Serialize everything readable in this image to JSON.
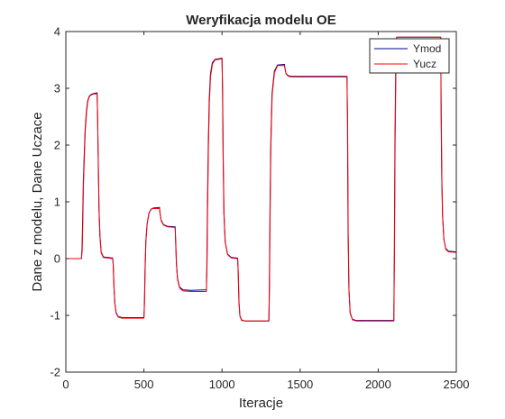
{
  "chart_data": {
    "type": "line",
    "title": "Weryfikacja modelu OE",
    "xlabel": "Iteracje",
    "ylabel": "Dane z modelu, Dane Uczace",
    "xlim": [
      0,
      2500
    ],
    "ylim": [
      -2,
      4
    ],
    "xticks": [
      "0",
      "500",
      "1000",
      "1500",
      "2000",
      "2500"
    ],
    "yticks": [
      "-2",
      "-1",
      "0",
      "1",
      "2",
      "3",
      "4"
    ],
    "grid": false,
    "legend": "top-right",
    "series": [
      {
        "name": "Ymod",
        "color": "#00008b",
        "points": [
          [
            0,
            0
          ],
          [
            100,
            0
          ],
          [
            104,
            0.2
          ],
          [
            108,
            0.75
          ],
          [
            112,
            1.35
          ],
          [
            118,
            1.85
          ],
          [
            124,
            2.3
          ],
          [
            132,
            2.6
          ],
          [
            140,
            2.78
          ],
          [
            150,
            2.86
          ],
          [
            160,
            2.89
          ],
          [
            180,
            2.91
          ],
          [
            200,
            2.92
          ],
          [
            203,
            2.6
          ],
          [
            207,
            1.8
          ],
          [
            212,
            0.9
          ],
          [
            218,
            0.4
          ],
          [
            226,
            0.12
          ],
          [
            240,
            0.03
          ],
          [
            300,
            0.01
          ],
          [
            303,
            -0.1
          ],
          [
            308,
            -0.5
          ],
          [
            314,
            -0.8
          ],
          [
            322,
            -0.95
          ],
          [
            335,
            -1.02
          ],
          [
            360,
            -1.04
          ],
          [
            500,
            -1.04
          ],
          [
            503,
            -0.8
          ],
          [
            507,
            -0.2
          ],
          [
            512,
            0.3
          ],
          [
            520,
            0.6
          ],
          [
            532,
            0.8
          ],
          [
            545,
            0.87
          ],
          [
            560,
            0.89
          ],
          [
            600,
            0.9
          ],
          [
            603,
            0.8
          ],
          [
            610,
            0.68
          ],
          [
            625,
            0.6
          ],
          [
            650,
            0.57
          ],
          [
            700,
            0.56
          ],
          [
            703,
            0.3
          ],
          [
            708,
            -0.1
          ],
          [
            715,
            -0.35
          ],
          [
            728,
            -0.5
          ],
          [
            750,
            -0.55
          ],
          [
            800,
            -0.56
          ],
          [
            900,
            -0.55
          ],
          [
            903,
            -0.1
          ],
          [
            907,
            1.0
          ],
          [
            912,
            2.0
          ],
          [
            918,
            2.8
          ],
          [
            926,
            3.25
          ],
          [
            938,
            3.45
          ],
          [
            955,
            3.51
          ],
          [
            1000,
            3.53
          ],
          [
            1003,
            3.0
          ],
          [
            1007,
            1.8
          ],
          [
            1012,
            0.8
          ],
          [
            1020,
            0.3
          ],
          [
            1035,
            0.08
          ],
          [
            1060,
            0.02
          ],
          [
            1100,
            0.01
          ],
          [
            1103,
            -0.2
          ],
          [
            1108,
            -0.75
          ],
          [
            1114,
            -1.0
          ],
          [
            1125,
            -1.08
          ],
          [
            1150,
            -1.1
          ],
          [
            1300,
            -1.1
          ],
          [
            1303,
            -0.5
          ],
          [
            1307,
            0.8
          ],
          [
            1312,
            2.0
          ],
          [
            1320,
            2.9
          ],
          [
            1335,
            3.3
          ],
          [
            1355,
            3.41
          ],
          [
            1400,
            3.42
          ],
          [
            1403,
            3.35
          ],
          [
            1410,
            3.26
          ],
          [
            1425,
            3.22
          ],
          [
            1450,
            3.21
          ],
          [
            1800,
            3.21
          ],
          [
            1803,
            2.5
          ],
          [
            1807,
            0.5
          ],
          [
            1812,
            -0.5
          ],
          [
            1820,
            -0.95
          ],
          [
            1835,
            -1.07
          ],
          [
            1860,
            -1.09
          ],
          [
            2100,
            -1.09
          ],
          [
            2103,
            0.0
          ],
          [
            2107,
            2.0
          ],
          [
            2112,
            3.3
          ],
          [
            2118,
            3.9
          ],
          [
            2400,
            3.9
          ],
          [
            2403,
            2.5
          ],
          [
            2407,
            1.4
          ],
          [
            2412,
            0.75
          ],
          [
            2420,
            0.35
          ],
          [
            2432,
            0.18
          ],
          [
            2450,
            0.13
          ],
          [
            2500,
            0.12
          ]
        ]
      },
      {
        "name": "Yucz",
        "color": "#ff0000",
        "points": [
          [
            0,
            0
          ],
          [
            100,
            0
          ],
          [
            105,
            0.15
          ],
          [
            109,
            0.7
          ],
          [
            113,
            1.3
          ],
          [
            119,
            1.82
          ],
          [
            125,
            2.28
          ],
          [
            133,
            2.58
          ],
          [
            141,
            2.77
          ],
          [
            150,
            2.85
          ],
          [
            160,
            2.88
          ],
          [
            180,
            2.9
          ],
          [
            200,
            2.9
          ],
          [
            203,
            2.55
          ],
          [
            208,
            1.7
          ],
          [
            213,
            0.85
          ],
          [
            219,
            0.38
          ],
          [
            227,
            0.1
          ],
          [
            240,
            0.02
          ],
          [
            300,
            0.0
          ],
          [
            304,
            -0.12
          ],
          [
            309,
            -0.52
          ],
          [
            315,
            -0.82
          ],
          [
            323,
            -0.97
          ],
          [
            336,
            -1.03
          ],
          [
            360,
            -1.05
          ],
          [
            500,
            -1.05
          ],
          [
            504,
            -0.78
          ],
          [
            508,
            -0.18
          ],
          [
            513,
            0.32
          ],
          [
            521,
            0.62
          ],
          [
            533,
            0.8
          ],
          [
            546,
            0.87
          ],
          [
            560,
            0.88
          ],
          [
            600,
            0.88
          ],
          [
            604,
            0.78
          ],
          [
            611,
            0.66
          ],
          [
            626,
            0.59
          ],
          [
            650,
            0.56
          ],
          [
            700,
            0.55
          ],
          [
            704,
            0.28
          ],
          [
            709,
            -0.12
          ],
          [
            716,
            -0.38
          ],
          [
            729,
            -0.52
          ],
          [
            750,
            -0.57
          ],
          [
            800,
            -0.58
          ],
          [
            900,
            -0.58
          ],
          [
            904,
            -0.12
          ],
          [
            908,
            0.95
          ],
          [
            913,
            1.95
          ],
          [
            919,
            2.75
          ],
          [
            927,
            3.22
          ],
          [
            939,
            3.43
          ],
          [
            955,
            3.5
          ],
          [
            1000,
            3.52
          ],
          [
            1004,
            2.95
          ],
          [
            1008,
            1.75
          ],
          [
            1013,
            0.78
          ],
          [
            1021,
            0.28
          ],
          [
            1036,
            0.07
          ],
          [
            1060,
            0.01
          ],
          [
            1100,
            0.0
          ],
          [
            1104,
            -0.22
          ],
          [
            1109,
            -0.77
          ],
          [
            1115,
            -1.02
          ],
          [
            1126,
            -1.09
          ],
          [
            1150,
            -1.1
          ],
          [
            1300,
            -1.1
          ],
          [
            1304,
            -0.52
          ],
          [
            1308,
            0.78
          ],
          [
            1313,
            1.98
          ],
          [
            1321,
            2.88
          ],
          [
            1336,
            3.28
          ],
          [
            1356,
            3.4
          ],
          [
            1400,
            3.4
          ],
          [
            1404,
            3.33
          ],
          [
            1411,
            3.25
          ],
          [
            1426,
            3.21
          ],
          [
            1450,
            3.2
          ],
          [
            1800,
            3.2
          ],
          [
            1804,
            2.45
          ],
          [
            1808,
            0.45
          ],
          [
            1813,
            -0.55
          ],
          [
            1821,
            -0.97
          ],
          [
            1836,
            -1.08
          ],
          [
            1860,
            -1.1
          ],
          [
            2100,
            -1.1
          ],
          [
            2104,
            -0.05
          ],
          [
            2108,
            1.95
          ],
          [
            2113,
            3.25
          ],
          [
            2119,
            3.9
          ],
          [
            2400,
            3.9
          ],
          [
            2404,
            2.45
          ],
          [
            2408,
            1.35
          ],
          [
            2413,
            0.72
          ],
          [
            2421,
            0.33
          ],
          [
            2433,
            0.16
          ],
          [
            2450,
            0.12
          ],
          [
            2500,
            0.11
          ]
        ]
      }
    ]
  }
}
